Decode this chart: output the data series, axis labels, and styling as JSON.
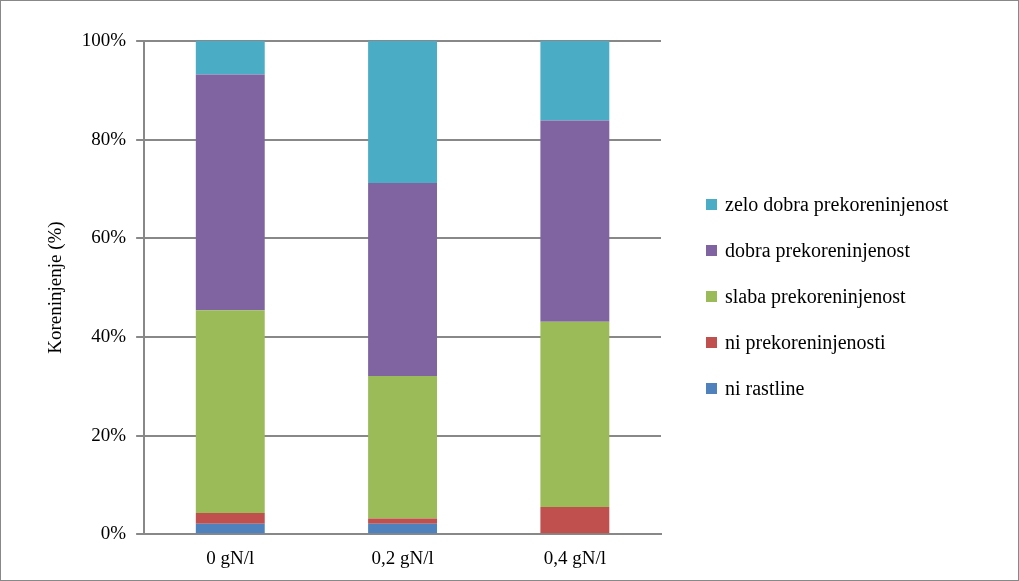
{
  "chart_data": {
    "type": "bar",
    "stacked": true,
    "ylabel": "Koreninjenje (%)",
    "categories": [
      "0 gN/l",
      "0,2 gN/l",
      "0,4 gN/l"
    ],
    "series": [
      {
        "name": "ni rastline",
        "color": "#4f81bd",
        "values": [
          2.1,
          2.1,
          0
        ]
      },
      {
        "name": "ni prekoreninjenosti",
        "color": "#c0504d",
        "values": [
          2.2,
          1.1,
          5.5
        ]
      },
      {
        "name": "slaba prekoreninjenost",
        "color": "#9bbb59",
        "values": [
          41.1,
          28.9,
          37.6
        ]
      },
      {
        "name": "dobra prekoreninjenost",
        "color": "#8064a2",
        "values": [
          47.8,
          39.1,
          40.8
        ]
      },
      {
        "name": "zelo dobra prekoreninjenost",
        "color": "#4bacc6",
        "values": [
          6.8,
          28.8,
          16.1
        ]
      }
    ],
    "ylim": [
      0,
      100
    ],
    "yticks": [
      {
        "value": 0,
        "label": "0%"
      },
      {
        "value": 20,
        "label": "20%"
      },
      {
        "value": 40,
        "label": "40%"
      },
      {
        "value": 60,
        "label": "60%"
      },
      {
        "value": 80,
        "label": "80%"
      },
      {
        "value": 100,
        "label": "100%"
      }
    ],
    "grid": "y",
    "legend": "right"
  }
}
